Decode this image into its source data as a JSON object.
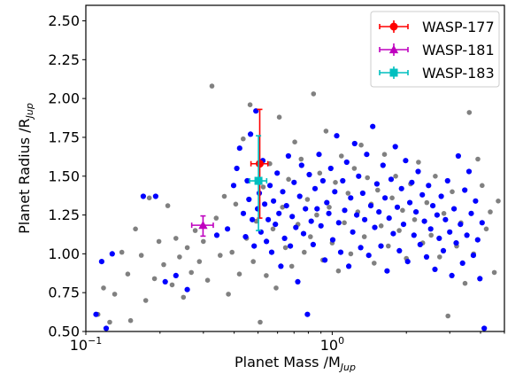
{
  "chart_data": {
    "type": "scatter",
    "xlabel": "Planet Mass /M",
    "xlabel_sub": "Jup",
    "ylabel": "Planet Radius /R",
    "ylabel_sub": "Jup",
    "xscale": "log",
    "xlim": [
      0.1,
      5.0
    ],
    "ylim": [
      0.5,
      2.6
    ],
    "x_tick_labels": [
      {
        "base": "10",
        "exp": "−1",
        "value": 0.1
      },
      {
        "base": "10",
        "exp": "0",
        "value": 1.0
      }
    ],
    "y_ticks": [
      0.5,
      0.75,
      1.0,
      1.25,
      1.5,
      1.75,
      2.0,
      2.25,
      2.5
    ],
    "y_tick_labels": [
      "0.50",
      "0.75",
      "1.00",
      "1.25",
      "1.50",
      "1.75",
      "2.00",
      "2.25",
      "2.50"
    ],
    "grid": false,
    "legend_position": "top-right",
    "colors": {
      "background_population": "#808080",
      "highlight_population": "#0000ff",
      "wasp177": "#ff0000",
      "wasp181": "#bf00bf",
      "wasp183": "#00bfbf"
    },
    "series": [
      {
        "name": "WASP-177",
        "marker": "circle",
        "color": "#ff0000",
        "points": [
          {
            "x": 0.508,
            "y": 1.58,
            "xerr": [
              0.04,
              0.04
            ],
            "yerr": [
              0.35,
              0.35
            ]
          }
        ]
      },
      {
        "name": "WASP-181",
        "marker": "triangle",
        "color": "#bf00bf",
        "points": [
          {
            "x": 0.299,
            "y": 1.184,
            "xerr": [
              0.03,
              0.03
            ],
            "yerr": [
              0.07,
              0.06
            ]
          }
        ]
      },
      {
        "name": "WASP-183",
        "marker": "square",
        "color": "#00bfbf",
        "points": [
          {
            "x": 0.502,
            "y": 1.47,
            "xerr": [
              0.04,
              0.04
            ],
            "yerr": [
              0.32,
              0.29
            ]
          }
        ]
      }
    ],
    "background_population": {
      "color": "#808080",
      "points": [
        [
          0.112,
          0.61
        ],
        [
          0.118,
          0.78
        ],
        [
          0.125,
          0.56
        ],
        [
          0.131,
          0.74
        ],
        [
          0.14,
          1.01
        ],
        [
          0.148,
          0.87
        ],
        [
          0.152,
          0.57
        ],
        [
          0.159,
          1.16
        ],
        [
          0.168,
          0.99
        ],
        [
          0.175,
          0.7
        ],
        [
          0.181,
          1.36
        ],
        [
          0.19,
          0.84
        ],
        [
          0.198,
          1.08
        ],
        [
          0.207,
          0.93
        ],
        [
          0.215,
          1.31
        ],
        [
          0.224,
          0.8
        ],
        [
          0.232,
          1.1
        ],
        [
          0.24,
          0.98
        ],
        [
          0.249,
          0.72
        ],
        [
          0.258,
          1.04
        ],
        [
          0.268,
          0.88
        ],
        [
          0.278,
          1.15
        ],
        [
          0.289,
          0.95
        ],
        [
          0.3,
          1.08
        ],
        [
          0.312,
          0.83
        ],
        [
          0.325,
          2.08
        ],
        [
          0.338,
          1.23
        ],
        [
          0.351,
          0.99
        ],
        [
          0.365,
          1.37
        ],
        [
          0.379,
          0.74
        ],
        [
          0.392,
          1.01
        ],
        [
          0.406,
          1.32
        ],
        [
          0.42,
          0.87
        ],
        [
          0.435,
          1.74
        ],
        [
          0.449,
          1.1
        ],
        [
          0.464,
          1.96
        ],
        [
          0.478,
          0.95
        ],
        [
          0.492,
          1.21
        ],
        [
          0.51,
          0.56
        ],
        [
          0.525,
          1.43
        ],
        [
          0.54,
          0.86
        ],
        [
          0.558,
          1.58
        ],
        [
          0.575,
          1.16
        ],
        [
          0.592,
          0.78
        ],
        [
          0.61,
          1.88
        ],
        [
          0.628,
          1.3
        ],
        [
          0.646,
          1.04
        ],
        [
          0.665,
          1.48
        ],
        [
          0.685,
          0.92
        ],
        [
          0.705,
          1.72
        ],
        [
          0.726,
          1.19
        ],
        [
          0.748,
          1.61
        ],
        [
          0.77,
          1.01
        ],
        [
          0.793,
          1.35
        ],
        [
          0.816,
          1.11
        ],
        [
          0.84,
          2.03
        ],
        [
          0.865,
          1.25
        ],
        [
          0.89,
          1.52
        ],
        [
          0.916,
          0.96
        ],
        [
          0.944,
          1.79
        ],
        [
          0.972,
          1.3
        ],
        [
          1.0,
          1.07
        ],
        [
          1.03,
          1.46
        ],
        [
          1.06,
          0.89
        ],
        [
          1.09,
          1.63
        ],
        [
          1.12,
          1.2
        ],
        [
          1.16,
          1.39
        ],
        [
          1.19,
          1.0
        ],
        [
          1.23,
          1.55
        ],
        [
          1.27,
          1.27
        ],
        [
          1.31,
          1.7
        ],
        [
          1.35,
          1.11
        ],
        [
          1.39,
          1.49
        ],
        [
          1.44,
          1.32
        ],
        [
          1.48,
          0.94
        ],
        [
          1.53,
          1.41
        ],
        [
          1.58,
          1.18
        ],
        [
          1.63,
          1.64
        ],
        [
          1.69,
          1.05
        ],
        [
          1.75,
          1.36
        ],
        [
          1.81,
          1.5
        ],
        [
          1.87,
          1.15
        ],
        [
          1.93,
          1.28
        ],
        [
          2.0,
          0.97
        ],
        [
          2.08,
          1.45
        ],
        [
          2.16,
          1.22
        ],
        [
          2.24,
          1.59
        ],
        [
          2.33,
          1.07
        ],
        [
          2.42,
          1.33
        ],
        [
          2.52,
          1.12
        ],
        [
          2.62,
          1.5
        ],
        [
          2.73,
          0.98
        ],
        [
          2.84,
          1.26
        ],
        [
          2.95,
          0.6
        ],
        [
          3.07,
          1.4
        ],
        [
          3.2,
          1.05
        ],
        [
          3.33,
          1.2
        ],
        [
          3.46,
          0.81
        ],
        [
          3.6,
          1.91
        ],
        [
          3.75,
          1.0
        ],
        [
          3.9,
          1.61
        ],
        [
          4.06,
          1.44
        ],
        [
          4.22,
          1.16
        ],
        [
          4.38,
          1.27
        ],
        [
          4.55,
          0.88
        ],
        [
          4.72,
          1.34
        ]
      ]
    },
    "highlight_population": {
      "color": "#0000ff",
      "points": [
        [
          0.11,
          0.61
        ],
        [
          0.116,
          0.95
        ],
        [
          0.121,
          0.52
        ],
        [
          0.128,
          1.0
        ],
        [
          0.171,
          1.37
        ],
        [
          0.192,
          1.37
        ],
        [
          0.21,
          0.82
        ],
        [
          0.232,
          0.86
        ],
        [
          0.258,
          0.77
        ],
        [
          0.34,
          1.12
        ],
        [
          0.376,
          1.16
        ],
        [
          0.398,
          1.44
        ],
        [
          0.41,
          1.55
        ],
        [
          0.421,
          1.68
        ],
        [
          0.436,
          1.26
        ],
        [
          0.445,
          1.11
        ],
        [
          0.452,
          1.47
        ],
        [
          0.459,
          1.35
        ],
        [
          0.466,
          1.77
        ],
        [
          0.474,
          1.22
        ],
        [
          0.482,
          1.05
        ],
        [
          0.49,
          1.92
        ],
        [
          0.498,
          1.29
        ],
        [
          0.506,
          1.39
        ],
        [
          0.514,
          1.14
        ],
        [
          0.523,
          1.6
        ],
        [
          0.532,
          1.32
        ],
        [
          0.541,
          1.08
        ],
        [
          0.55,
          1.22
        ],
        [
          0.559,
          1.44
        ],
        [
          0.568,
          1.01
        ],
        [
          0.578,
          1.34
        ],
        [
          0.588,
          1.19
        ],
        [
          0.598,
          1.52
        ],
        [
          0.608,
          1.26
        ],
        [
          0.619,
          0.92
        ],
        [
          0.63,
          1.4
        ],
        [
          0.641,
          1.1
        ],
        [
          0.652,
          1.31
        ],
        [
          0.664,
          1.63
        ],
        [
          0.676,
          1.05
        ],
        [
          0.688,
          1.24
        ],
        [
          0.7,
          1.46
        ],
        [
          0.712,
          1.17
        ],
        [
          0.725,
          0.82
        ],
        [
          0.738,
          1.37
        ],
        [
          0.751,
          1.57
        ],
        [
          0.765,
          1.13
        ],
        [
          0.779,
          1.29
        ],
        [
          0.793,
          0.61
        ],
        [
          0.807,
          1.51
        ],
        [
          0.822,
          1.21
        ],
        [
          0.837,
          1.06
        ],
        [
          0.852,
          1.42
        ],
        [
          0.868,
          1.29
        ],
        [
          0.884,
          1.64
        ],
        [
          0.9,
          1.18
        ],
        [
          0.917,
          1.47
        ],
        [
          0.934,
          0.96
        ],
        [
          0.951,
          1.33
        ],
        [
          0.969,
          1.26
        ],
        [
          0.987,
          1.55
        ],
        [
          1.005,
          1.09
        ],
        [
          1.024,
          1.4
        ],
        [
          1.043,
          1.76
        ],
        [
          1.063,
          1.2
        ],
        [
          1.083,
          1.01
        ],
        [
          1.103,
          1.47
        ],
        [
          1.124,
          1.28
        ],
        [
          1.145,
          1.59
        ],
        [
          1.167,
          0.92
        ],
        [
          1.189,
          1.36
        ],
        [
          1.211,
          1.14
        ],
        [
          1.234,
          1.71
        ],
        [
          1.257,
          1.25
        ],
        [
          1.281,
          1.5
        ],
        [
          1.305,
          1.04
        ],
        [
          1.33,
          1.39
        ],
        [
          1.355,
          1.22
        ],
        [
          1.381,
          1.64
        ],
        [
          1.407,
          0.99
        ],
        [
          1.434,
          1.31
        ],
        [
          1.461,
          1.82
        ],
        [
          1.489,
          1.17
        ],
        [
          1.518,
          1.45
        ],
        [
          1.547,
          1.27
        ],
        [
          1.577,
          1.05
        ],
        [
          1.607,
          1.57
        ],
        [
          1.638,
          1.36
        ],
        [
          1.67,
          0.89
        ],
        [
          1.702,
          1.23
        ],
        [
          1.735,
          1.48
        ],
        [
          1.769,
          1.13
        ],
        [
          1.803,
          1.69
        ],
        [
          1.838,
          1.3
        ],
        [
          1.874,
          1.02
        ],
        [
          1.911,
          1.42
        ],
        [
          1.948,
          1.19
        ],
        [
          1.986,
          1.6
        ],
        [
          2.025,
          0.95
        ],
        [
          2.065,
          1.33
        ],
        [
          2.105,
          1.46
        ],
        [
          2.147,
          1.12
        ],
        [
          2.189,
          1.27
        ],
        [
          2.232,
          1.53
        ],
        [
          2.276,
          1.06
        ],
        [
          2.321,
          1.38
        ],
        [
          2.367,
          1.21
        ],
        [
          2.414,
          0.98
        ],
        [
          2.462,
          1.44
        ],
        [
          2.511,
          1.16
        ],
        [
          2.561,
          1.31
        ],
        [
          2.612,
          0.9
        ],
        [
          2.664,
          1.25
        ],
        [
          2.717,
          1.1
        ],
        [
          2.771,
          1.37
        ],
        [
          2.826,
          1.02
        ],
        [
          2.883,
          1.22
        ],
        [
          2.941,
          1.47
        ],
        [
          3.0,
          1.14
        ],
        [
          3.06,
          0.86
        ],
        [
          3.122,
          1.29
        ],
        [
          3.185,
          1.07
        ],
        [
          3.249,
          1.63
        ],
        [
          3.315,
          1.19
        ],
        [
          3.382,
          0.94
        ],
        [
          3.451,
          1.41
        ],
        [
          3.521,
          1.12
        ],
        [
          3.593,
          1.53
        ],
        [
          3.666,
          1.26
        ],
        [
          3.741,
          0.99
        ],
        [
          3.818,
          1.34
        ],
        [
          3.896,
          1.09
        ],
        [
          3.976,
          0.84
        ],
        [
          4.058,
          1.2
        ],
        [
          4.142,
          0.52
        ]
      ]
    }
  }
}
